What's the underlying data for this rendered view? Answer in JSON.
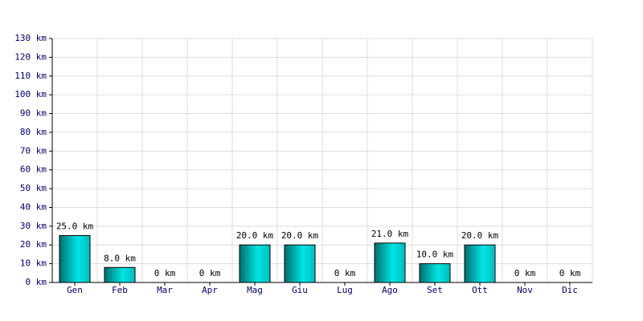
{
  "chart_data": {
    "type": "bar",
    "categories": [
      "Gen",
      "Feb",
      "Mar",
      "Apr",
      "Mag",
      "Giu",
      "Lug",
      "Ago",
      "Set",
      "Ott",
      "Nov",
      "Dic"
    ],
    "values": [
      25,
      8,
      0,
      0,
      20,
      20,
      0,
      21,
      10,
      20,
      0,
      0
    ],
    "value_labels": [
      "25.0 km",
      "8.0 km",
      "0 km",
      "0 km",
      "20.0 km",
      "20.0 km",
      "0 km",
      "21.0 km",
      "10.0 km",
      "20.0 km",
      "0 km",
      "0 km"
    ],
    "color": "#00e5e5",
    "ylim": [
      0,
      130
    ],
    "yticks": [
      {
        "value": 0,
        "label": "0 km"
      },
      {
        "value": 10,
        "label": "10 km"
      },
      {
        "value": 20,
        "label": "20 km"
      },
      {
        "value": 30,
        "label": "30 km"
      },
      {
        "value": 40,
        "label": "40 km"
      },
      {
        "value": 50,
        "label": "50 km"
      },
      {
        "value": 60,
        "label": "60 km"
      },
      {
        "value": 70,
        "label": "70 km"
      },
      {
        "value": 80,
        "label": "80 km"
      },
      {
        "value": 90,
        "label": "90 km"
      },
      {
        "value": 100,
        "label": "100 km"
      },
      {
        "value": 110,
        "label": "110 km"
      },
      {
        "value": 120,
        "label": "120 km"
      },
      {
        "value": 130,
        "label": "130 km"
      }
    ],
    "grid": true
  }
}
